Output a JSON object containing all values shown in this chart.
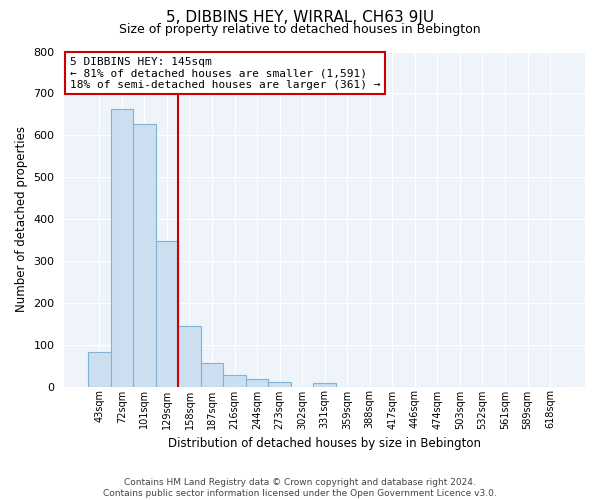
{
  "title": "5, DIBBINS HEY, WIRRAL, CH63 9JU",
  "subtitle": "Size of property relative to detached houses in Bebington",
  "xlabel": "Distribution of detached houses by size in Bebington",
  "ylabel": "Number of detached properties",
  "categories": [
    "43sqm",
    "72sqm",
    "101sqm",
    "129sqm",
    "158sqm",
    "187sqm",
    "216sqm",
    "244sqm",
    "273sqm",
    "302sqm",
    "331sqm",
    "359sqm",
    "388sqm",
    "417sqm",
    "446sqm",
    "474sqm",
    "503sqm",
    "532sqm",
    "561sqm",
    "589sqm",
    "618sqm"
  ],
  "values": [
    82,
    662,
    628,
    348,
    145,
    55,
    27,
    18,
    10,
    0,
    8,
    0,
    0,
    0,
    0,
    0,
    0,
    0,
    0,
    0,
    0
  ],
  "bar_color": "#ccdff0",
  "bar_edge_color": "#7fb3d3",
  "vline_x_idx": 3,
  "vline_color": "#cc0000",
  "annotation_title": "5 DIBBINS HEY: 145sqm",
  "annotation_line1": "← 81% of detached houses are smaller (1,591)",
  "annotation_line2": "18% of semi-detached houses are larger (361) →",
  "annotation_box_color": "#ffffff",
  "annotation_border_color": "#cc0000",
  "ylim": [
    0,
    800
  ],
  "yticks": [
    0,
    100,
    200,
    300,
    400,
    500,
    600,
    700,
    800
  ],
  "footer_line1": "Contains HM Land Registry data © Crown copyright and database right 2024.",
  "footer_line2": "Contains public sector information licensed under the Open Government Licence v3.0.",
  "bg_color": "#ffffff",
  "plot_bg_color": "#eef4fa",
  "grid_color": "#ffffff"
}
